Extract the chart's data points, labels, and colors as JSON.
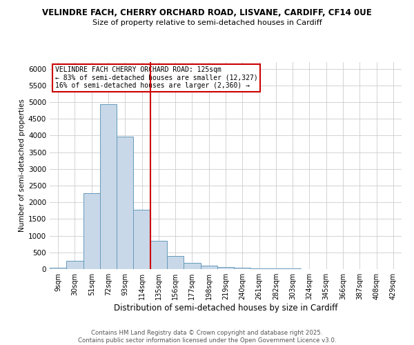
{
  "title_line1": "VELINDRE FACH, CHERRY ORCHARD ROAD, LISVANE, CARDIFF, CF14 0UE",
  "title_line2": "Size of property relative to semi-detached houses in Cardiff",
  "xlabel": "Distribution of semi-detached houses by size in Cardiff",
  "ylabel": "Number of semi-detached properties",
  "bins": [
    "9sqm",
    "30sqm",
    "51sqm",
    "72sqm",
    "93sqm",
    "114sqm",
    "135sqm",
    "156sqm",
    "177sqm",
    "198sqm",
    "219sqm",
    "240sqm",
    "261sqm",
    "282sqm",
    "303sqm",
    "324sqm",
    "345sqm",
    "366sqm",
    "387sqm",
    "408sqm",
    "429sqm"
  ],
  "counts": [
    50,
    240,
    2270,
    4940,
    3960,
    1770,
    850,
    400,
    180,
    95,
    65,
    50,
    30,
    20,
    15,
    10,
    8,
    5,
    3,
    2,
    0
  ],
  "bar_color": "#c8d8e8",
  "bar_edge_color": "#6699bb",
  "vline_color": "#cc0000",
  "vline_x_idx": 6,
  "annotation_title": "VELINDRE FACH CHERRY ORCHARD ROAD: 125sqm",
  "annotation_line2": "← 83% of semi-detached houses are smaller (12,327)",
  "annotation_line3": "16% of semi-detached houses are larger (2,360) →",
  "annotation_box_color": "#ffffff",
  "annotation_box_edge": "#cc0000",
  "ylim": [
    0,
    6200
  ],
  "yticks": [
    0,
    500,
    1000,
    1500,
    2000,
    2500,
    3000,
    3500,
    4000,
    4500,
    5000,
    5500,
    6000
  ],
  "footer_line1": "Contains HM Land Registry data © Crown copyright and database right 2025.",
  "footer_line2": "Contains public sector information licensed under the Open Government Licence v3.0.",
  "bg_color": "#ffffff",
  "plot_bg_color": "#ffffff",
  "grid_color": "#cccccc"
}
